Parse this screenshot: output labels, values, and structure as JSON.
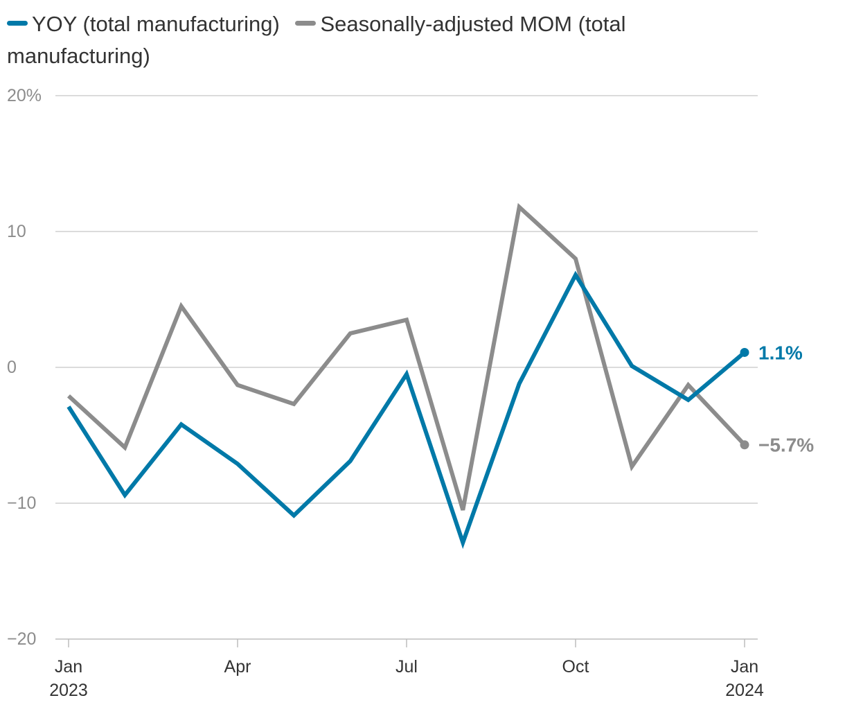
{
  "colors": {
    "yoy": "#0079a8",
    "mom": "#8c8c8c",
    "grid": "#cfcfcf",
    "axis": "#bdbdbd"
  },
  "chart_data": {
    "type": "line",
    "title": "",
    "xlabel": "",
    "ylabel": "",
    "ylim": [
      -20,
      20
    ],
    "yticks": [
      {
        "value": 20,
        "label": "20%"
      },
      {
        "value": 10,
        "label": "10"
      },
      {
        "value": 0,
        "label": "0"
      },
      {
        "value": -10,
        "label": "−10"
      },
      {
        "value": -20,
        "label": "−20"
      }
    ],
    "categories": [
      "Jan 2023",
      "Feb 2023",
      "Mar 2023",
      "Apr 2023",
      "May 2023",
      "Jun 2023",
      "Jul 2023",
      "Aug 2023",
      "Sep 2023",
      "Oct 2023",
      "Nov 2023",
      "Dec 2023",
      "Jan 2024"
    ],
    "xticks": [
      {
        "index": 0,
        "line1": "Jan",
        "line2": "2023"
      },
      {
        "index": 3,
        "line1": "Apr",
        "line2": ""
      },
      {
        "index": 6,
        "line1": "Jul",
        "line2": ""
      },
      {
        "index": 9,
        "line1": "Oct",
        "line2": ""
      },
      {
        "index": 12,
        "line1": "Jan",
        "line2": "2024"
      }
    ],
    "series": [
      {
        "key": "mom",
        "name": "Seasonally-adjusted MOM (total manufacturing)",
        "values": [
          -2.1,
          -5.9,
          4.5,
          -1.3,
          -2.7,
          2.5,
          3.5,
          -10.5,
          11.8,
          8.0,
          -7.3,
          -1.3,
          -5.7
        ],
        "end_label": "−5.7%"
      },
      {
        "key": "yoy",
        "name": "YOY (total manufacturing)",
        "values": [
          -2.9,
          -9.4,
          -4.2,
          -7.1,
          -10.9,
          -6.9,
          -0.5,
          -12.9,
          -1.2,
          6.8,
          0.1,
          -2.4,
          1.1
        ],
        "end_label": "1.1%"
      }
    ],
    "legend": [
      {
        "key": "yoy",
        "label": "YOY (total manufacturing)"
      },
      {
        "key": "mom",
        "label": "Seasonally-adjusted MOM (total manufacturing)"
      }
    ],
    "legend_position": "top-left",
    "grid": true
  }
}
